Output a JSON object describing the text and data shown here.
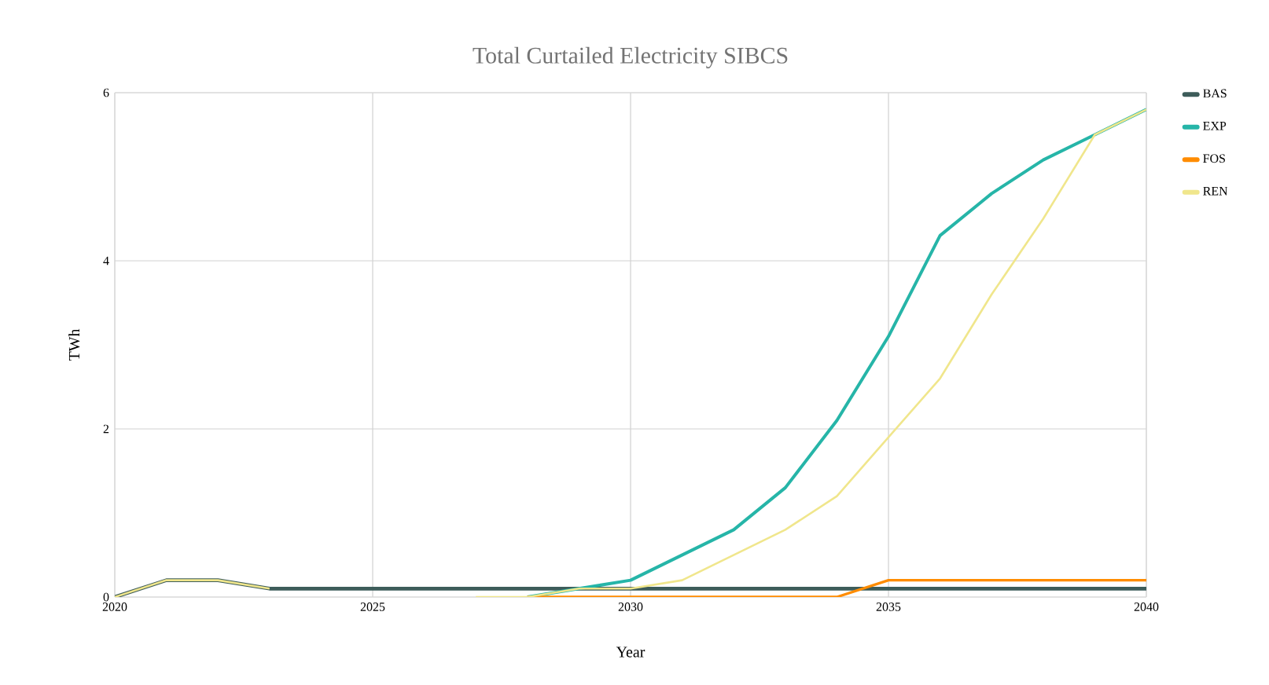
{
  "chart_data": {
    "type": "line",
    "title": "Total Curtailed Electricity SIBCS",
    "xlabel": "Year",
    "ylabel": "TWh",
    "x": [
      2020,
      2021,
      2022,
      2023,
      2024,
      2025,
      2026,
      2027,
      2028,
      2029,
      2030,
      2031,
      2032,
      2033,
      2034,
      2035,
      2036,
      2037,
      2038,
      2039,
      2040
    ],
    "series": [
      {
        "name": "BAS",
        "color": "#3d5c5a",
        "values": [
          0,
          0.2,
          0.2,
          0.1,
          0.1,
          0.1,
          0.1,
          0.1,
          0.1,
          0.1,
          0.1,
          0.1,
          0.1,
          0.1,
          0.1,
          0.1,
          0.1,
          0.1,
          0.1,
          0.1,
          0.1
        ]
      },
      {
        "name": "EXP",
        "color": "#26b5a8",
        "values": [
          null,
          null,
          null,
          null,
          null,
          null,
          null,
          null,
          0,
          0.1,
          0.2,
          0.5,
          0.8,
          1.3,
          2.1,
          3.1,
          4.3,
          4.8,
          5.2,
          5.5,
          5.8
        ]
      },
      {
        "name": "FOS",
        "color": "#ff8c00",
        "values": [
          null,
          null,
          null,
          null,
          null,
          null,
          null,
          null,
          0,
          0,
          0,
          0,
          0,
          0,
          0,
          0.2,
          0.2,
          0.2,
          0.2,
          0.2,
          0.2
        ]
      },
      {
        "name": "REN",
        "color": "#f0e68c",
        "values": [
          0,
          0.2,
          0.2,
          0.1,
          null,
          null,
          null,
          0,
          0,
          0.1,
          0.1,
          0.2,
          0.5,
          0.8,
          1.2,
          1.9,
          2.6,
          3.6,
          4.5,
          5.5,
          5.8
        ]
      }
    ],
    "xlim": [
      2020,
      2040
    ],
    "xticks": [
      2020,
      2025,
      2030,
      2035,
      2040
    ],
    "ylim": [
      0,
      6
    ],
    "yticks": [
      0,
      2,
      4,
      6
    ],
    "grid": true,
    "legend": "top right",
    "marker": "none",
    "line_style": "solid"
  }
}
